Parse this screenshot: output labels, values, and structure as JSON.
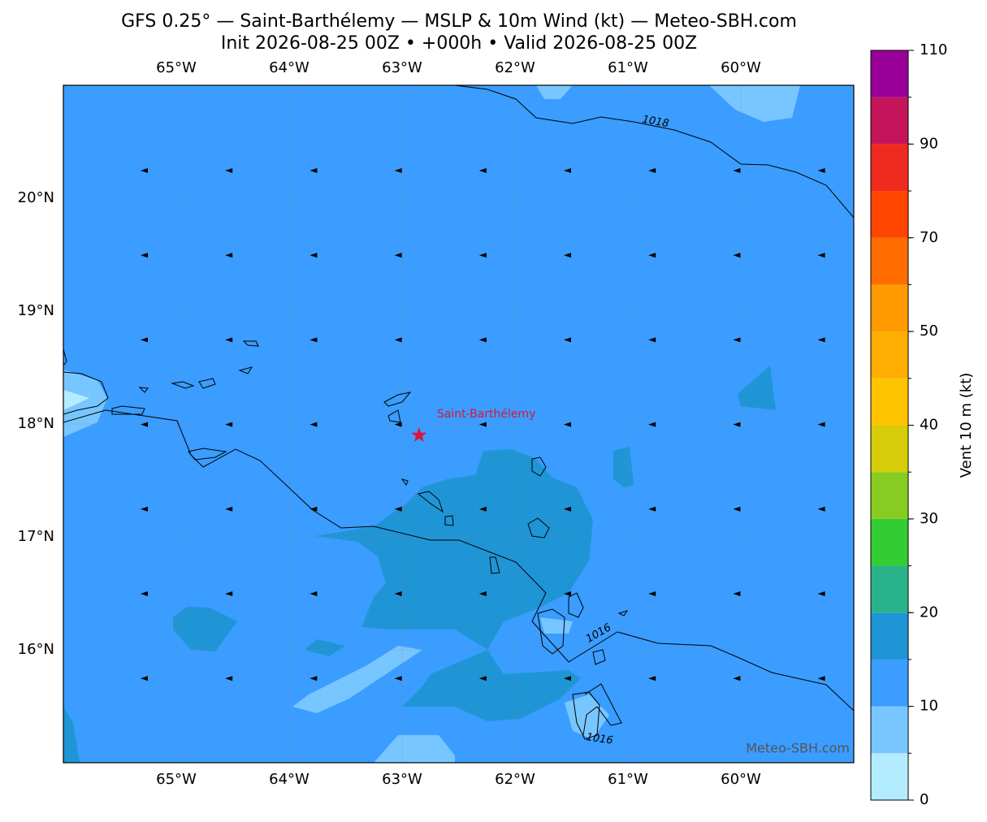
{
  "title": "GFS 0.25° — Saint-Barthélemy — MSLP & 10m Wind (kt) — Meteo-SBH.com",
  "subtitle": "Init 2026-08-25 00Z • +000h • Valid 2026-08-25 00Z",
  "map": {
    "lonlim": [
      -66,
      -59
    ],
    "latlim": [
      15,
      21
    ],
    "lonticks": [
      {
        "value": -65,
        "label": "65°W"
      },
      {
        "value": -64,
        "label": "64°W"
      },
      {
        "value": -63,
        "label": "63°W"
      },
      {
        "value": -62,
        "label": "62°W"
      },
      {
        "value": -61,
        "label": "61°W"
      },
      {
        "value": -60,
        "label": "60°W"
      }
    ],
    "latticks": [
      {
        "value": 20,
        "label": "20°N"
      },
      {
        "value": 19,
        "label": "19°N"
      },
      {
        "value": 18,
        "label": "18°N"
      },
      {
        "value": 17,
        "label": "17°N"
      },
      {
        "value": 16,
        "label": "16°N"
      }
    ],
    "grid": true
  },
  "station": {
    "name": "Saint-Barthélemy",
    "lon": -62.85,
    "lat": 17.9,
    "color": "#dc143c"
  },
  "isobar_labels": [
    1018,
    1016,
    1016
  ],
  "watermark": "Meteo-SBH.com",
  "colorbar": {
    "label": "Vent 10 m (kt)",
    "levels": [
      0,
      5,
      10,
      15,
      20,
      25,
      30,
      35,
      40,
      45,
      50,
      60,
      70,
      80,
      90,
      100,
      110
    ],
    "colors": [
      "#b3ecff",
      "#78c6ff",
      "#3a9dff",
      "#1f95d6",
      "#2ab38a",
      "#33cc33",
      "#88cc22",
      "#d6cc0a",
      "#ffc400",
      "#ffad00",
      "#ff9a00",
      "#ff6d00",
      "#ff4500",
      "#ee2b1e",
      "#c4155a",
      "#990099"
    ],
    "ticks": [
      0,
      10,
      20,
      30,
      40,
      50,
      70,
      90,
      110
    ]
  }
}
